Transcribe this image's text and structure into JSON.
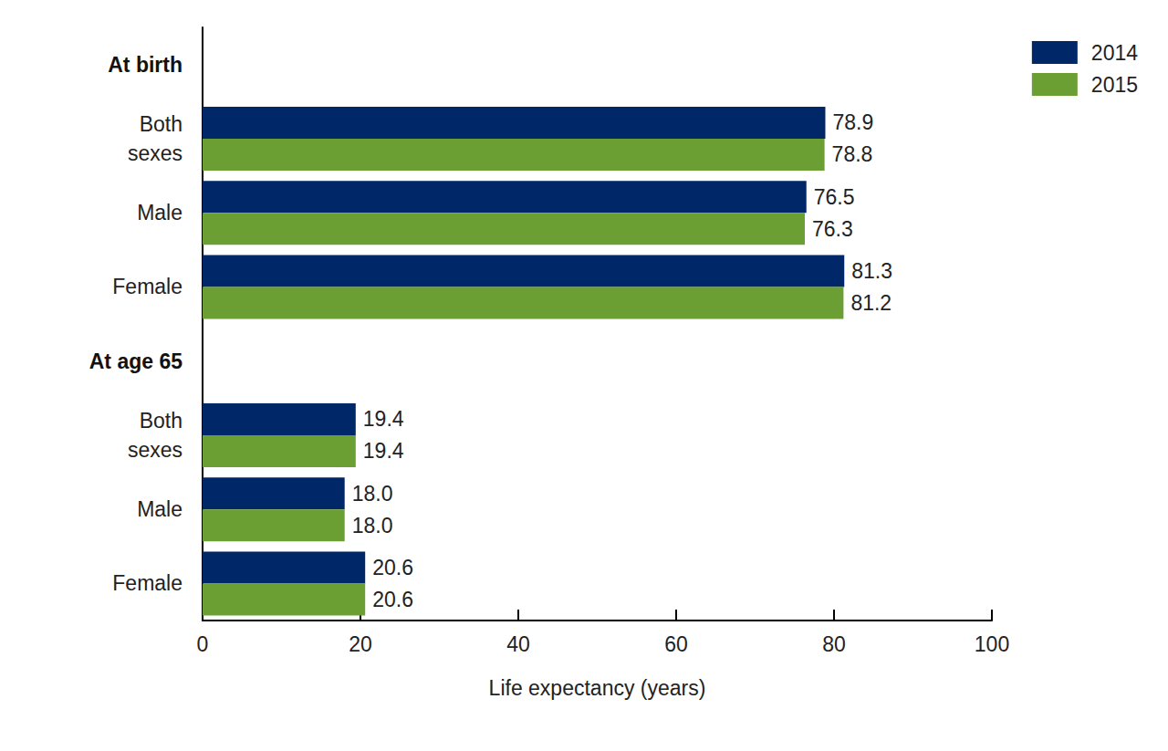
{
  "chart_data": {
    "type": "bar",
    "orientation": "horizontal",
    "x_label": "Life expectancy (years)",
    "categories": [
      "At birth",
      "Both sexes",
      "Male",
      "Female",
      "At age 65",
      "Both sexes",
      "Male",
      "Female"
    ],
    "series": [
      {
        "name": "2014",
        "color": "#002868",
        "values": [
          null,
          78.9,
          76.5,
          81.3,
          null,
          19.4,
          18.0,
          20.6
        ],
        "value_labels": [
          null,
          "78.9",
          "76.5",
          "81.3",
          null,
          "19.4",
          "18.0",
          "20.6"
        ]
      },
      {
        "name": "2015",
        "color": "#6b9e33",
        "values": [
          null,
          78.8,
          76.3,
          81.2,
          null,
          19.4,
          18.0,
          20.6
        ],
        "value_labels": [
          null,
          "78.8",
          "76.3",
          "81.2",
          null,
          "19.4",
          "18.0",
          "20.6"
        ]
      }
    ],
    "xlim": [
      0,
      100
    ],
    "xticks": [
      0,
      20,
      40,
      60,
      80,
      100
    ],
    "grid": false,
    "legend": "top-right",
    "data_labels": true
  }
}
